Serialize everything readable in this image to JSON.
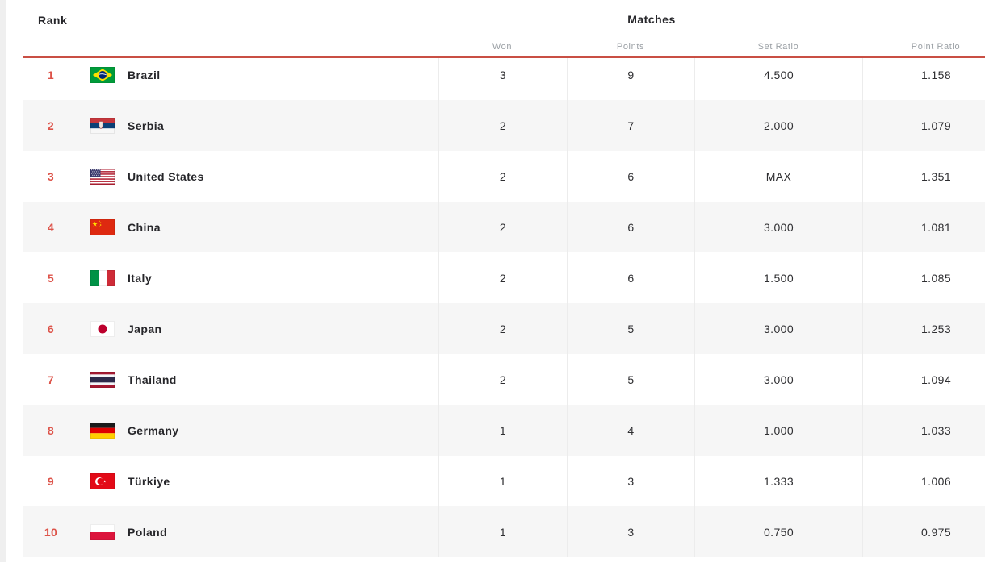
{
  "header": {
    "rank_label": "Rank",
    "group_label": "Matches",
    "columns": [
      "Won",
      "Points",
      "Set Ratio",
      "Point Ratio"
    ]
  },
  "colors": {
    "accent_red": "#dd5349",
    "header_rule_red": "#c94f44",
    "alt_row_bg": "#f6f6f6",
    "column_divider": "#ececec",
    "muted_header_text": "#9ba0a5",
    "dark_text": "#26262a"
  },
  "rows": [
    {
      "rank": "1",
      "flag": "flag-brazil",
      "team": "Brazil",
      "won": "3",
      "points": "9",
      "set_ratio": "4.500",
      "point_ratio": "1.158"
    },
    {
      "rank": "2",
      "flag": "flag-serbia",
      "team": "Serbia",
      "won": "2",
      "points": "7",
      "set_ratio": "2.000",
      "point_ratio": "1.079"
    },
    {
      "rank": "3",
      "flag": "flag-united-states",
      "team": "United States",
      "won": "2",
      "points": "6",
      "set_ratio": "MAX",
      "point_ratio": "1.351"
    },
    {
      "rank": "4",
      "flag": "flag-china",
      "team": "China",
      "won": "2",
      "points": "6",
      "set_ratio": "3.000",
      "point_ratio": "1.081"
    },
    {
      "rank": "5",
      "flag": "flag-italy",
      "team": "Italy",
      "won": "2",
      "points": "6",
      "set_ratio": "1.500",
      "point_ratio": "1.085"
    },
    {
      "rank": "6",
      "flag": "flag-japan",
      "team": "Japan",
      "won": "2",
      "points": "5",
      "set_ratio": "3.000",
      "point_ratio": "1.253"
    },
    {
      "rank": "7",
      "flag": "flag-thailand",
      "team": "Thailand",
      "won": "2",
      "points": "5",
      "set_ratio": "3.000",
      "point_ratio": "1.094"
    },
    {
      "rank": "8",
      "flag": "flag-germany",
      "team": "Germany",
      "won": "1",
      "points": "4",
      "set_ratio": "1.000",
      "point_ratio": "1.033"
    },
    {
      "rank": "9",
      "flag": "flag-turkiye",
      "team": "Türkiye",
      "won": "1",
      "points": "3",
      "set_ratio": "1.333",
      "point_ratio": "1.006"
    },
    {
      "rank": "10",
      "flag": "flag-poland",
      "team": "Poland",
      "won": "1",
      "points": "3",
      "set_ratio": "0.750",
      "point_ratio": "0.975"
    }
  ]
}
